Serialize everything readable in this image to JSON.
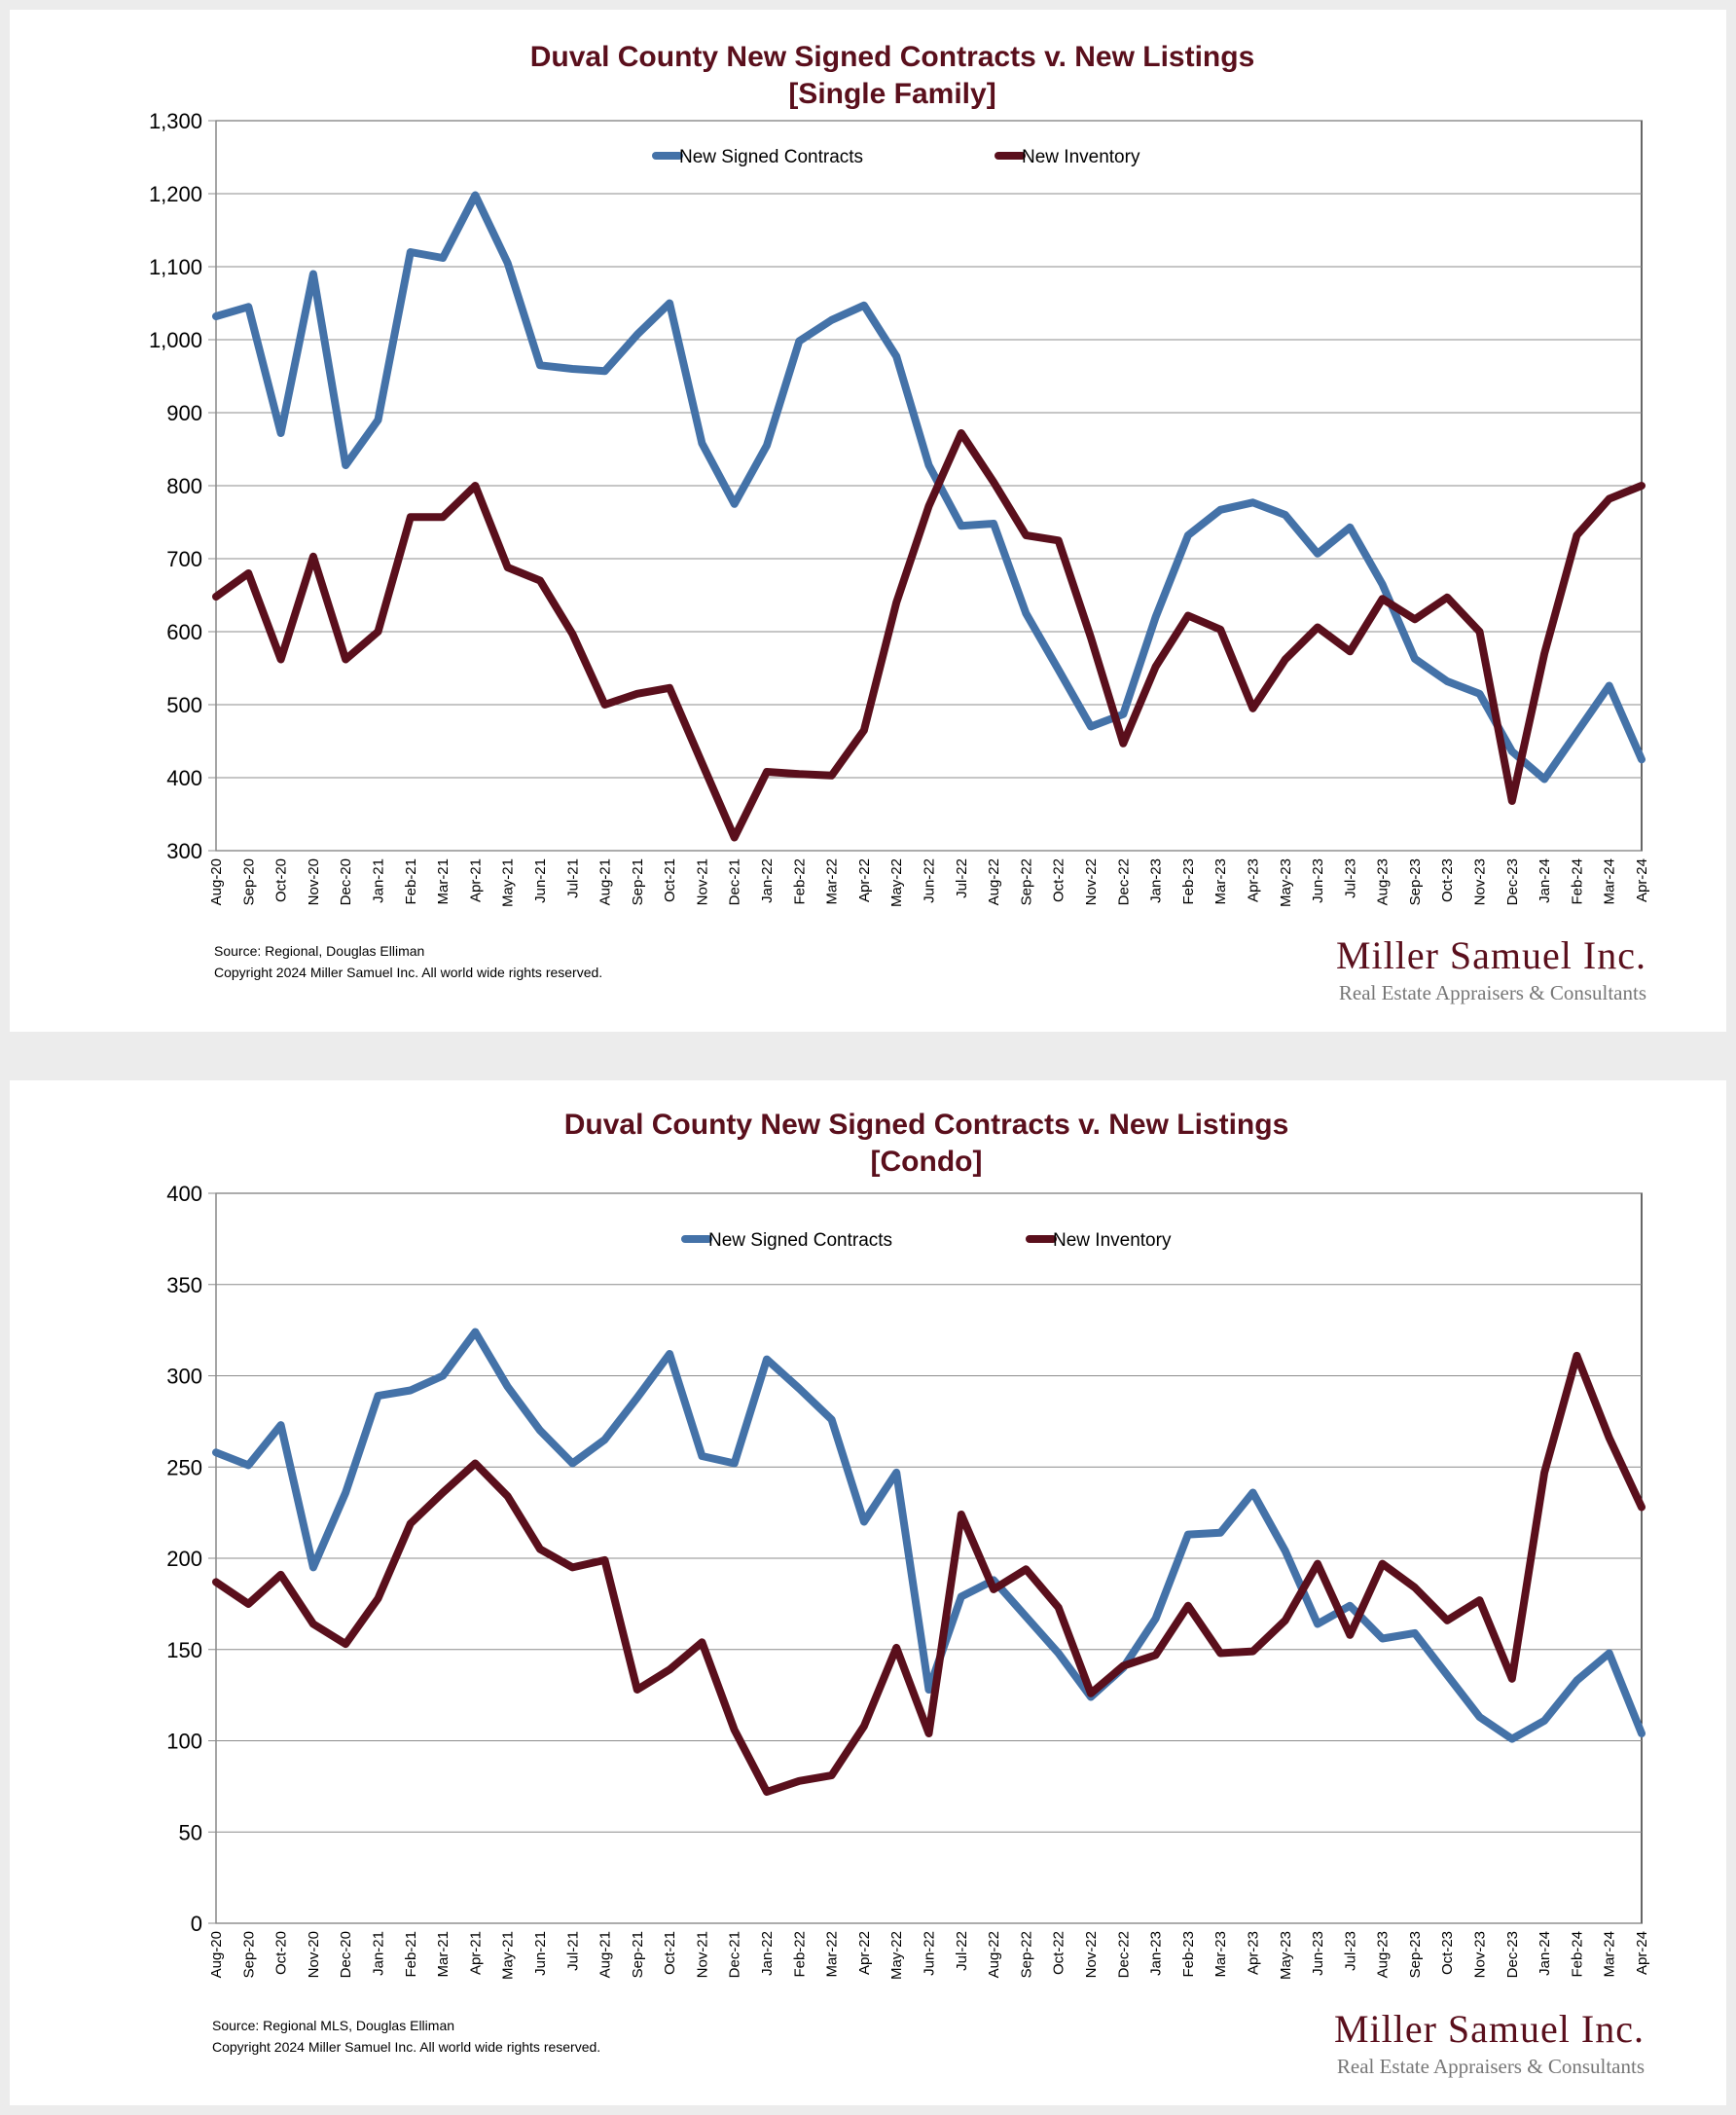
{
  "colors": {
    "contracts": "#4472a8",
    "inventory": "#5a0f1c",
    "title": "#5a0f1c",
    "grid": "#8c8c8c"
  },
  "brand": {
    "name": "Miller Samuel Inc.",
    "tagline": "Real Estate Appraisers & Consultants"
  },
  "chart_data": [
    {
      "type": "line",
      "title": "Duval County New Signed Contracts v. New Listings",
      "subtitle": "[Single Family]",
      "xlabel": "",
      "ylabel": "",
      "ylim": [
        300,
        1300
      ],
      "yticks": [
        300,
        400,
        500,
        600,
        700,
        800,
        900,
        1000,
        1100,
        1200,
        1300
      ],
      "ytick_labels": [
        "300",
        "400",
        "500",
        "600",
        "700",
        "800",
        "900",
        "1,000",
        "1,100",
        "1,200",
        "1,300"
      ],
      "grid": true,
      "legend": "top-center",
      "categories": [
        "Aug-20",
        "Sep-20",
        "Oct-20",
        "Nov-20",
        "Dec-20",
        "Jan-21",
        "Feb-21",
        "Mar-21",
        "Apr-21",
        "May-21",
        "Jun-21",
        "Jul-21",
        "Aug-21",
        "Sep-21",
        "Oct-21",
        "Nov-21",
        "Dec-21",
        "Jan-22",
        "Feb-22",
        "Mar-22",
        "Apr-22",
        "May-22",
        "Jun-22",
        "Jul-22",
        "Aug-22",
        "Sep-22",
        "Oct-22",
        "Nov-22",
        "Dec-22",
        "Jan-23",
        "Feb-23",
        "Mar-23",
        "Apr-23",
        "May-23",
        "Jun-23",
        "Jul-23",
        "Aug-23",
        "Sep-23",
        "Oct-23",
        "Nov-23",
        "Dec-23",
        "Jan-24",
        "Feb-24",
        "Mar-24",
        "Apr-24"
      ],
      "series": [
        {
          "name": "New Signed Contracts",
          "values": [
            1032,
            1045,
            872,
            1090,
            828,
            890,
            1120,
            1112,
            1198,
            1105,
            965,
            960,
            957,
            1007,
            1050,
            858,
            775,
            855,
            998,
            1027,
            1047,
            977,
            828,
            745,
            748,
            625,
            548,
            470,
            487,
            620,
            732,
            767,
            777,
            760,
            707,
            743,
            665,
            563,
            532,
            515,
            436,
            398,
            462,
            526,
            425
          ]
        },
        {
          "name": "New Inventory",
          "values": [
            648,
            680,
            562,
            703,
            562,
            600,
            757,
            757,
            800,
            688,
            670,
            597,
            500,
            515,
            523,
            420,
            318,
            408,
            405,
            403,
            465,
            640,
            772,
            872,
            805,
            732,
            725,
            592,
            447,
            552,
            622,
            603,
            495,
            562,
            606,
            573,
            645,
            617,
            647,
            600,
            368,
            570,
            732,
            782,
            800
          ]
        }
      ],
      "source": "Source: Regional, Douglas Elliman",
      "copyright": "Copyright 2024 Miller Samuel Inc.  All world wide rights reserved."
    },
    {
      "type": "line",
      "title": "Duval County New Signed Contracts v. New Listings",
      "subtitle": "[Condo]",
      "xlabel": "",
      "ylabel": "",
      "ylim": [
        0,
        400
      ],
      "yticks": [
        0,
        50,
        100,
        150,
        200,
        250,
        300,
        350,
        400
      ],
      "ytick_labels": [
        "0",
        "50",
        "100",
        "150",
        "200",
        "250",
        "300",
        "350",
        "400"
      ],
      "grid": true,
      "legend": "top-center",
      "categories": [
        "Aug-20",
        "Sep-20",
        "Oct-20",
        "Nov-20",
        "Dec-20",
        "Jan-21",
        "Feb-21",
        "Mar-21",
        "Apr-21",
        "May-21",
        "Jun-21",
        "Jul-21",
        "Aug-21",
        "Sep-21",
        "Oct-21",
        "Nov-21",
        "Dec-21",
        "Jan-22",
        "Feb-22",
        "Mar-22",
        "Apr-22",
        "May-22",
        "Jun-22",
        "Jul-22",
        "Aug-22",
        "Sep-22",
        "Oct-22",
        "Nov-22",
        "Dec-22",
        "Jan-23",
        "Feb-23",
        "Mar-23",
        "Apr-23",
        "May-23",
        "Jun-23",
        "Jul-23",
        "Aug-23",
        "Sep-23",
        "Oct-23",
        "Nov-23",
        "Dec-23",
        "Jan-24",
        "Feb-24",
        "Mar-24",
        "Apr-24"
      ],
      "series": [
        {
          "name": "New Signed Contracts",
          "values": [
            258,
            251,
            273,
            195,
            236,
            289,
            292,
            300,
            324,
            294,
            270,
            252,
            265,
            288,
            312,
            256,
            252,
            309,
            293,
            276,
            220,
            247,
            128,
            179,
            188,
            168,
            148,
            124,
            140,
            167,
            213,
            214,
            236,
            204,
            164,
            174,
            156,
            159,
            136,
            113,
            101,
            111,
            133,
            148,
            104
          ]
        },
        {
          "name": "New Inventory",
          "values": [
            187,
            175,
            191,
            164,
            153,
            178,
            219,
            236,
            252,
            234,
            205,
            195,
            199,
            128,
            139,
            154,
            106,
            72,
            78,
            81,
            108,
            151,
            104,
            224,
            183,
            194,
            173,
            126,
            141,
            147,
            174,
            148,
            149,
            166,
            197,
            158,
            197,
            184,
            166,
            177,
            134,
            247,
            311,
            266,
            228
          ]
        }
      ],
      "source": "Source: Regional MLS, Douglas Elliman",
      "copyright": "Copyright 2024 Miller Samuel Inc.  All world wide rights reserved."
    }
  ]
}
